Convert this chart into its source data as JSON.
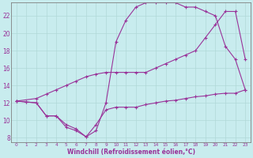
{
  "xlabel": "Windchill (Refroidissement éolien,°C)",
  "bg_color": "#c8ecee",
  "line_color": "#993399",
  "grid_color": "#b0d8d8",
  "xlim": [
    -0.5,
    23.5
  ],
  "ylim": [
    7.5,
    23.5
  ],
  "xticks": [
    0,
    1,
    2,
    3,
    4,
    5,
    6,
    7,
    8,
    9,
    10,
    11,
    12,
    13,
    14,
    15,
    16,
    17,
    18,
    19,
    20,
    21,
    22,
    23
  ],
  "yticks": [
    8,
    10,
    12,
    14,
    16,
    18,
    20,
    22
  ],
  "line1_x": [
    0,
    1,
    2,
    3,
    4,
    5,
    6,
    7,
    8,
    9,
    10,
    11,
    12,
    13,
    14,
    15,
    16,
    17,
    18,
    19,
    20,
    21,
    22,
    23
  ],
  "line1_y": [
    12.2,
    12.1,
    12.0,
    10.5,
    10.5,
    9.2,
    8.8,
    8.1,
    9.5,
    11.2,
    11.5,
    11.5,
    11.5,
    11.8,
    12.0,
    12.2,
    12.3,
    12.5,
    12.7,
    12.8,
    13.0,
    13.1,
    13.1,
    13.5
  ],
  "line2_x": [
    0,
    2,
    3,
    4,
    5,
    6,
    7,
    8,
    9,
    10,
    11,
    12,
    13,
    14,
    15,
    16,
    17,
    18,
    19,
    20,
    21,
    22,
    23
  ],
  "line2_y": [
    12.2,
    12.5,
    13.0,
    13.5,
    14.0,
    14.5,
    15.0,
    15.3,
    15.5,
    15.5,
    15.5,
    15.5,
    15.5,
    16.0,
    16.5,
    17.0,
    17.5,
    18.0,
    19.5,
    21.0,
    22.5,
    22.5,
    17.0
  ],
  "line3_x": [
    0,
    1,
    2,
    3,
    4,
    5,
    6,
    7,
    8,
    9,
    10,
    11,
    12,
    13,
    14,
    15,
    16,
    17,
    18,
    19,
    20,
    21,
    22,
    23
  ],
  "line3_y": [
    12.2,
    12.1,
    12.0,
    10.5,
    10.5,
    9.5,
    9.0,
    8.1,
    8.8,
    12.0,
    19.0,
    21.5,
    23.0,
    23.5,
    23.5,
    23.5,
    23.5,
    23.0,
    23.0,
    22.5,
    22.0,
    18.5,
    17.0,
    13.5
  ]
}
